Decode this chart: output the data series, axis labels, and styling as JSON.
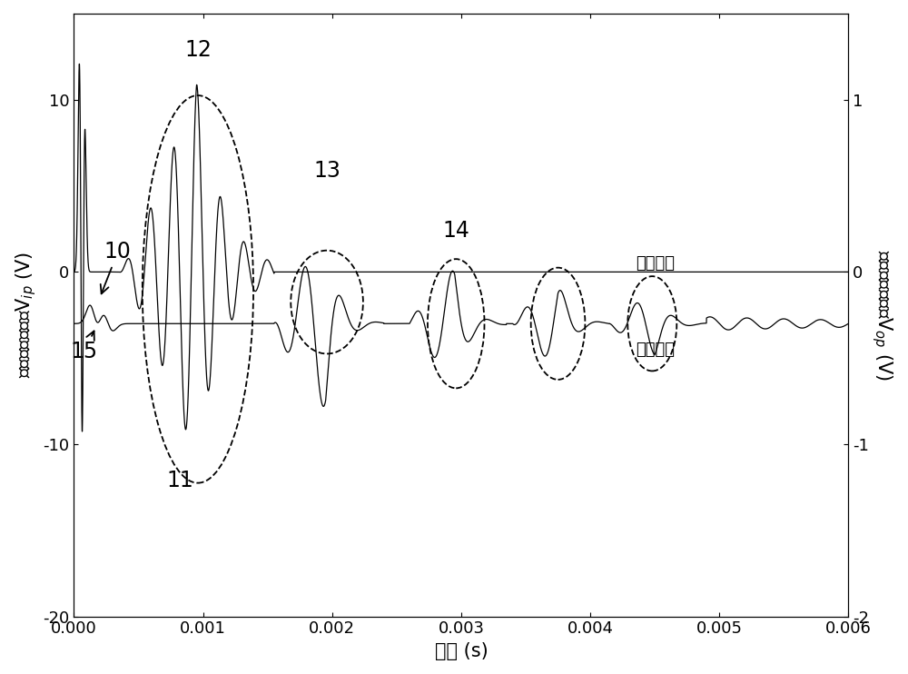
{
  "xlabel": "时间 (s)",
  "ylabel_left": "激励信号电压，Vᵢₚ (V)",
  "ylabel_right": "接收信号电压，Vₒₚ (V)",
  "xlim": [
    0.0,
    0.006
  ],
  "ylim_left": [
    -20,
    15
  ],
  "ylim_right": [
    -2,
    1.5
  ],
  "xticks": [
    0.0,
    0.001,
    0.002,
    0.003,
    0.004,
    0.005,
    0.006
  ],
  "yticks_left": [
    -20,
    -10,
    0,
    10
  ],
  "yticks_right": [
    -2,
    -1,
    0,
    1
  ],
  "label_excitation": "激励信号",
  "label_received": "接收信号",
  "background_color": "#ffffff",
  "line_color": "#000000",
  "fontsize_labels": 15,
  "fontsize_ticks": 13,
  "fontsize_annot": 17
}
